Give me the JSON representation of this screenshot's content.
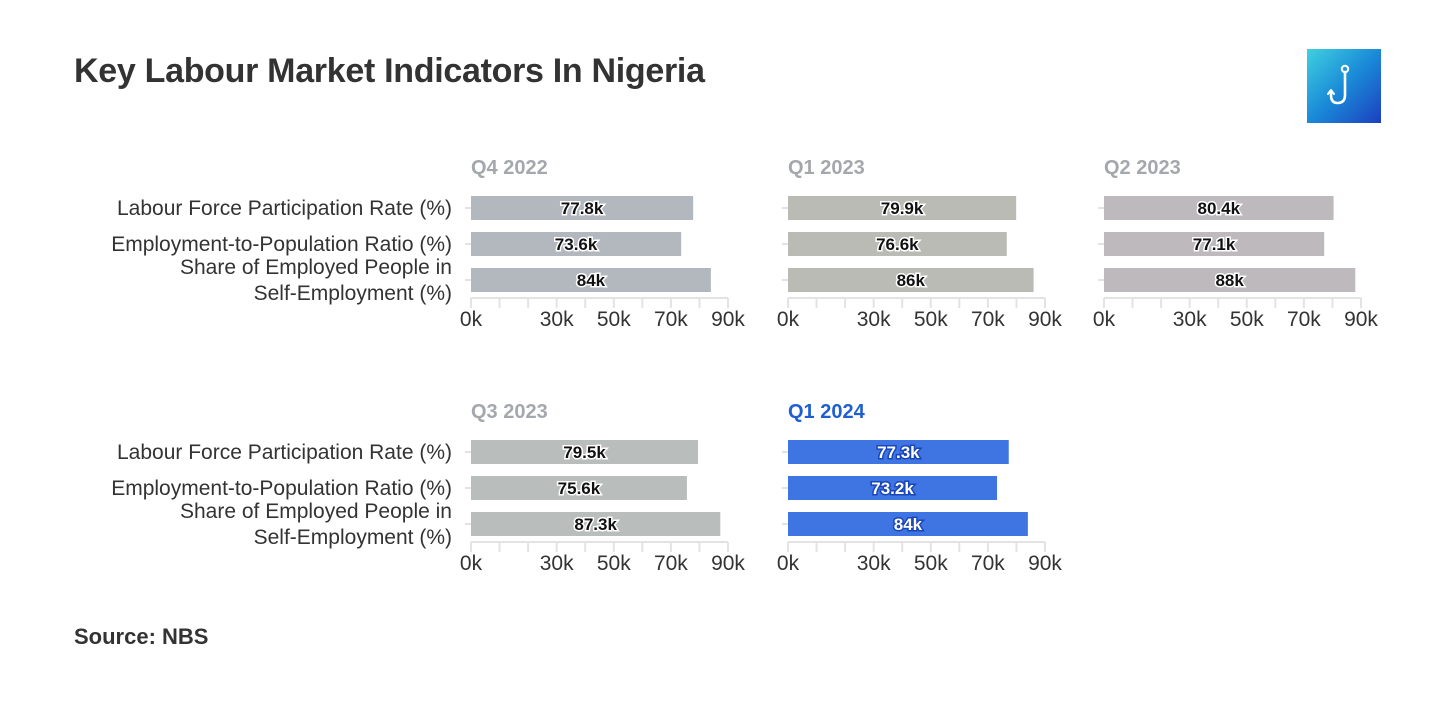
{
  "title": "Key Labour Market Indicators In Nigeria",
  "source": "Source: NBS",
  "logo_icon": "hook-logo-icon",
  "chart_data": {
    "type": "bar",
    "orientation": "horizontal",
    "categories": [
      [
        "Labour Force Participation Rate (%)"
      ],
      [
        "Employment-to-Population Ratio (%)"
      ],
      [
        "Share of Employed People in",
        "Self-Employment (%)"
      ]
    ],
    "xlim": [
      0,
      90
    ],
    "ticks": [
      {
        "value": 0,
        "label": "0k"
      },
      {
        "value": 30,
        "label": "30k"
      },
      {
        "value": 50,
        "label": "50k"
      },
      {
        "value": 70,
        "label": "70k"
      },
      {
        "value": 90,
        "label": "90k"
      }
    ],
    "minor_tick_step": 10,
    "panels": [
      {
        "title": "Q4 2022",
        "values": [
          77.8,
          73.6,
          84
        ],
        "labels": [
          "77.8k",
          "73.6k",
          "84k"
        ],
        "color": "#b3b8be",
        "title_color": "#a4a8ad",
        "highlight": false
      },
      {
        "title": "Q1 2023",
        "values": [
          79.9,
          76.6,
          86
        ],
        "labels": [
          "79.9k",
          "76.6k",
          "86k"
        ],
        "color": "#babbb5",
        "title_color": "#a4a8ad",
        "highlight": false
      },
      {
        "title": "Q2 2023",
        "values": [
          80.4,
          77.1,
          88
        ],
        "labels": [
          "80.4k",
          "77.1k",
          "88k"
        ],
        "color": "#bdb9bd",
        "title_color": "#a4a8ad",
        "highlight": false
      },
      {
        "title": "Q3 2023",
        "values": [
          79.5,
          75.6,
          87.3
        ],
        "labels": [
          "79.5k",
          "75.6k",
          "87.3k"
        ],
        "color": "#b9bdbc",
        "title_color": "#a4a8ad",
        "highlight": false
      },
      {
        "title": "Q1 2024",
        "values": [
          77.3,
          73.2,
          84
        ],
        "labels": [
          "77.3k",
          "73.2k",
          "84k"
        ],
        "color": "#3f74e3",
        "title_color": "#1f5fd0",
        "highlight": true
      }
    ]
  }
}
